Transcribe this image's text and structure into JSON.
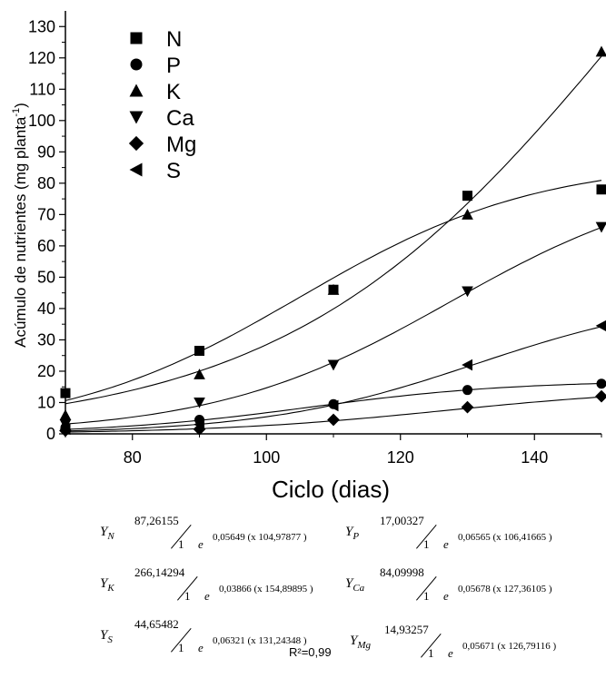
{
  "chart_data": {
    "type": "scatter",
    "xlabel": "Ciclo (dias)",
    "ylabel": "Acúmulo de nutrientes (mg planta-1)",
    "ylabel_main": "Acúmulo de nutrientes (mg planta",
    "ylabel_sup": "-1",
    "ylabel_close": ")",
    "xlim": [
      70,
      150
    ],
    "ylim": [
      0,
      135
    ],
    "xticks": [
      80,
      100,
      120,
      140
    ],
    "yticks": [
      0,
      10,
      20,
      30,
      40,
      50,
      60,
      70,
      80,
      90,
      100,
      110,
      120,
      130
    ],
    "x": [
      70,
      90,
      110,
      130,
      150
    ],
    "legend_position": "top-left",
    "series": [
      {
        "name": "N",
        "marker": "square",
        "values": [
          13,
          26.5,
          46,
          76,
          78
        ],
        "fit": {
          "a": 87.26155,
          "b": 0.05649,
          "c": 104.97877
        }
      },
      {
        "name": "P",
        "marker": "circle",
        "values": [
          2,
          4.5,
          9.5,
          14,
          16
        ],
        "fit": {
          "a": 17.00327,
          "b": 0.06565,
          "c": 106.41665
        }
      },
      {
        "name": "K",
        "marker": "triangle-up",
        "values": [
          6,
          19,
          46,
          70,
          122
        ],
        "fit": {
          "a": 266.14294,
          "b": 0.03866,
          "c": 154.89895
        }
      },
      {
        "name": "Ca",
        "marker": "triangle-down",
        "values": [
          3,
          10,
          22,
          45.5,
          66
        ],
        "fit": {
          "a": 84.09998,
          "b": 0.05678,
          "c": 127.36105
        }
      },
      {
        "name": "Mg",
        "marker": "diamond",
        "values": [
          1,
          1.5,
          4.5,
          8.5,
          12
        ],
        "fit": {
          "a": 14.93257,
          "b": 0.05671,
          "c": 126.79116
        }
      },
      {
        "name": "S",
        "marker": "triangle-left",
        "values": [
          1.5,
          3,
          9,
          22,
          34.5
        ],
        "fit": {
          "a": 44.65482,
          "b": 0.06321,
          "c": 131.24348
        }
      }
    ]
  },
  "equations": [
    {
      "lhs": "Y",
      "sub": "N",
      "num": "87,26155",
      "den": "1",
      "e": "e",
      "exp": "0,05649 (x  104,97877 )"
    },
    {
      "lhs": "Y",
      "sub": "P",
      "num": "17,00327",
      "den": "1",
      "e": "e",
      "exp": "0,06565 (x  106,41665 )"
    },
    {
      "lhs": "Y",
      "sub": "K",
      "num": "266,14294",
      "den": "1",
      "e": "e",
      "exp": "0,03866 (x  154,89895 )"
    },
    {
      "lhs": "Y",
      "sub": "Ca",
      "num": "84,09998",
      "den": "1",
      "e": "e",
      "exp": "0,05678 (x  127,36105 )"
    },
    {
      "lhs": "Y",
      "sub": "S",
      "num": "44,65482",
      "den": "1",
      "e": "e",
      "exp": "0,06321 (x  131,24348 )"
    },
    {
      "lhs": "Y",
      "sub": "Mg",
      "num": "14,93257",
      "den": "1",
      "e": "e",
      "exp": "0,05671 (x  126,79116 )"
    }
  ],
  "r2": "R²=0,99"
}
